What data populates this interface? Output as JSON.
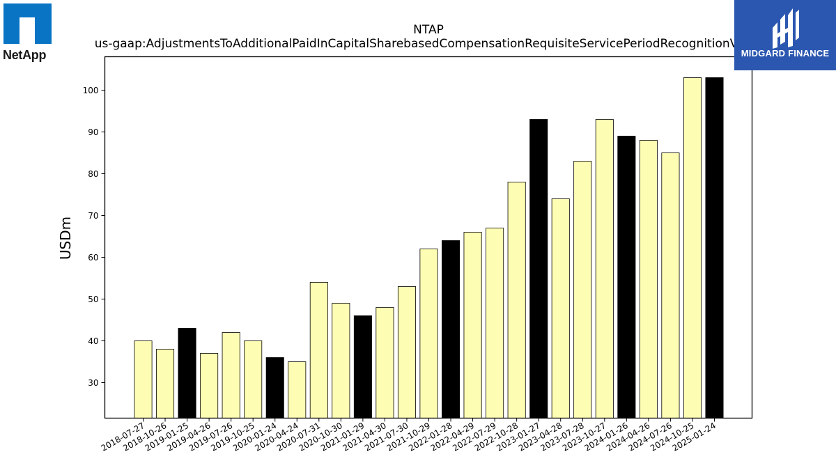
{
  "logos": {
    "left": {
      "text": "NetApp",
      "mark_icon": "netapp-logo-icon",
      "color": "#0a74c4"
    },
    "right": {
      "text": "MIDGARD FINANCE",
      "mark_icon": "midgard-logo-icon",
      "background": "#2b57b0"
    }
  },
  "chart_data": {
    "type": "bar",
    "title": "NTAP",
    "subtitle": "us-gaap:AdjustmentsToAdditionalPaidInCapitalSharebasedCompensationRequisiteServicePeriodRecognitionValue",
    "xlabel": "",
    "ylabel": "USDm",
    "ylim": [
      21.5,
      108
    ],
    "yticks": [
      30,
      40,
      50,
      60,
      70,
      80,
      90,
      100
    ],
    "grid": false,
    "colors": {
      "quarter": "#fdfdb4",
      "fiscal_q3": "#000000",
      "edge": "#000000"
    },
    "categories": [
      "2018-07-27",
      "2018-10-26",
      "2019-01-25",
      "2019-04-26",
      "2019-07-26",
      "2019-10-25",
      "2020-01-24",
      "2020-04-24",
      "2020-07-31",
      "2020-10-30",
      "2021-01-29",
      "2021-04-30",
      "2021-07-30",
      "2021-10-29",
      "2022-01-28",
      "2022-04-29",
      "2022-07-29",
      "2022-10-28",
      "2023-01-27",
      "2023-04-28",
      "2023-07-28",
      "2023-10-27",
      "2024-01-26",
      "2024-04-26",
      "2024-07-26",
      "2024-10-25",
      "2025-01-24"
    ],
    "values": [
      40,
      38,
      43,
      37,
      42,
      40,
      36,
      35,
      54,
      49,
      46,
      48,
      53,
      62,
      64,
      66,
      67,
      78,
      93,
      74,
      83,
      93,
      89,
      88,
      85,
      103,
      103
    ],
    "highlight": [
      false,
      false,
      true,
      false,
      false,
      false,
      true,
      false,
      false,
      false,
      true,
      false,
      false,
      false,
      true,
      false,
      false,
      false,
      true,
      false,
      false,
      false,
      true,
      false,
      false,
      false,
      true
    ]
  }
}
